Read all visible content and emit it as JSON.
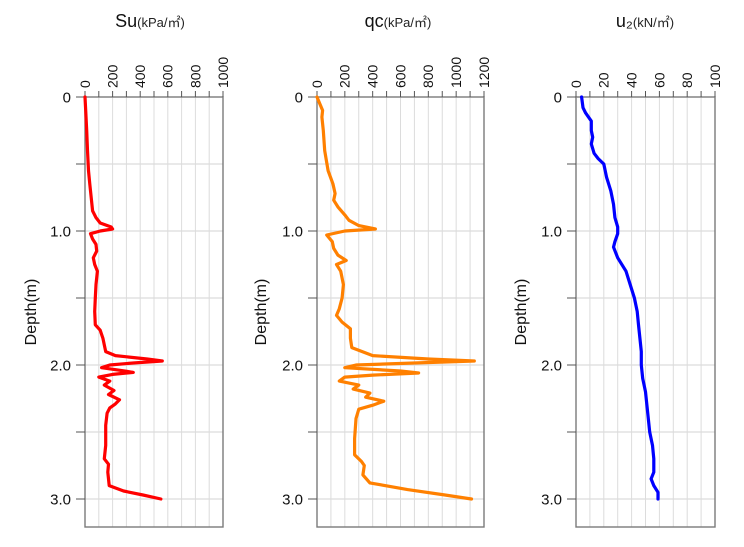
{
  "chart_data": [
    {
      "type": "line",
      "title": "Su",
      "unit": "(kPa/㎡)",
      "xlabel_ticks": [
        "0",
        "200",
        "400",
        "600",
        "800",
        "1000"
      ],
      "xlim": [
        0,
        1000
      ],
      "x_tick_step": 200,
      "x_grid_step": 100,
      "ylabel": "Depth(m)",
      "ylim": [
        0,
        3.21
      ],
      "y_ticks": [
        0,
        0.5,
        1.0,
        1.5,
        2.0,
        2.5,
        3.0
      ],
      "y_tick_labels": [
        "0",
        "",
        "1.0",
        "",
        "2.0",
        "",
        "3.0"
      ],
      "grid": true,
      "color": "#ff0000",
      "series": [
        {
          "name": "Su",
          "points": [
            [
              0.0,
              0
            ],
            [
              0.1,
              5
            ],
            [
              0.25,
              12
            ],
            [
              0.4,
              18
            ],
            [
              0.55,
              25
            ],
            [
              0.65,
              35
            ],
            [
              0.75,
              45
            ],
            [
              0.85,
              55
            ],
            [
              0.9,
              80
            ],
            [
              0.94,
              110
            ],
            [
              0.97,
              190
            ],
            [
              0.985,
              200
            ],
            [
              1.0,
              110
            ],
            [
              1.02,
              40
            ],
            [
              1.06,
              55
            ],
            [
              1.1,
              80
            ],
            [
              1.15,
              85
            ],
            [
              1.2,
              60
            ],
            [
              1.25,
              70
            ],
            [
              1.3,
              90
            ],
            [
              1.4,
              80
            ],
            [
              1.5,
              75
            ],
            [
              1.6,
              70
            ],
            [
              1.7,
              75
            ],
            [
              1.74,
              110
            ],
            [
              1.8,
              130
            ],
            [
              1.85,
              140
            ],
            [
              1.9,
              150
            ],
            [
              1.93,
              220
            ],
            [
              1.955,
              450
            ],
            [
              1.97,
              560
            ],
            [
              1.985,
              350
            ],
            [
              2.0,
              180
            ],
            [
              2.02,
              120
            ],
            [
              2.04,
              260
            ],
            [
              2.055,
              350
            ],
            [
              2.07,
              200
            ],
            [
              2.09,
              100
            ],
            [
              2.12,
              180
            ],
            [
              2.15,
              140
            ],
            [
              2.19,
              210
            ],
            [
              2.22,
              170
            ],
            [
              2.26,
              250
            ],
            [
              2.29,
              220
            ],
            [
              2.32,
              180
            ],
            [
              2.36,
              160
            ],
            [
              2.45,
              150
            ],
            [
              2.6,
              150
            ],
            [
              2.7,
              140
            ],
            [
              2.74,
              170
            ],
            [
              2.8,
              165
            ],
            [
              2.9,
              175
            ],
            [
              2.94,
              280
            ],
            [
              2.97,
              420
            ],
            [
              3.0,
              550
            ]
          ]
        }
      ]
    },
    {
      "type": "line",
      "title": "qc",
      "unit": "(kPa/㎡)",
      "xlabel_ticks": [
        "0",
        "200",
        "400",
        "600",
        "800",
        "1000",
        "1200"
      ],
      "xlim": [
        0,
        1200
      ],
      "x_tick_step": 200,
      "x_grid_step": 100,
      "ylabel": "Depth(m)",
      "ylim": [
        0,
        3.21
      ],
      "y_ticks": [
        0,
        0.5,
        1.0,
        1.5,
        2.0,
        2.5,
        3.0
      ],
      "y_tick_labels": [
        "0",
        "",
        "1.0",
        "",
        "2.0",
        "",
        "3.0"
      ],
      "grid": true,
      "color": "#ff8000",
      "series": [
        {
          "name": "qc",
          "points": [
            [
              0.0,
              0
            ],
            [
              0.05,
              20
            ],
            [
              0.1,
              40
            ],
            [
              0.15,
              35
            ],
            [
              0.25,
              45
            ],
            [
              0.4,
              55
            ],
            [
              0.55,
              80
            ],
            [
              0.65,
              115
            ],
            [
              0.72,
              130
            ],
            [
              0.77,
              120
            ],
            [
              0.82,
              150
            ],
            [
              0.88,
              200
            ],
            [
              0.92,
              230
            ],
            [
              0.96,
              300
            ],
            [
              0.985,
              420
            ],
            [
              1.0,
              200
            ],
            [
              1.03,
              70
            ],
            [
              1.08,
              110
            ],
            [
              1.13,
              120
            ],
            [
              1.18,
              150
            ],
            [
              1.22,
              210
            ],
            [
              1.25,
              140
            ],
            [
              1.3,
              170
            ],
            [
              1.4,
              190
            ],
            [
              1.5,
              180
            ],
            [
              1.58,
              160
            ],
            [
              1.63,
              140
            ],
            [
              1.68,
              180
            ],
            [
              1.73,
              240
            ],
            [
              1.8,
              240
            ],
            [
              1.87,
              250
            ],
            [
              1.93,
              400
            ],
            [
              1.955,
              800
            ],
            [
              1.97,
              1130
            ],
            [
              1.985,
              700
            ],
            [
              2.0,
              280
            ],
            [
              2.02,
              200
            ],
            [
              2.045,
              600
            ],
            [
              2.06,
              730
            ],
            [
              2.075,
              400
            ],
            [
              2.09,
              200
            ],
            [
              2.12,
              160
            ],
            [
              2.15,
              300
            ],
            [
              2.18,
              260
            ],
            [
              2.21,
              380
            ],
            [
              2.24,
              350
            ],
            [
              2.27,
              480
            ],
            [
              2.3,
              400
            ],
            [
              2.33,
              300
            ],
            [
              2.4,
              280
            ],
            [
              2.55,
              270
            ],
            [
              2.67,
              270
            ],
            [
              2.72,
              320
            ],
            [
              2.75,
              340
            ],
            [
              2.82,
              330
            ],
            [
              2.88,
              380
            ],
            [
              2.93,
              650
            ],
            [
              2.97,
              920
            ],
            [
              3.0,
              1110
            ]
          ]
        }
      ]
    },
    {
      "type": "line",
      "title": "u₂",
      "unit": "(kN/㎡)",
      "xlabel_ticks": [
        "0",
        "20",
        "40",
        "60",
        "80",
        "100"
      ],
      "xlim": [
        0,
        100
      ],
      "x_tick_step": 20,
      "x_grid_step": 10,
      "ylabel": "Depth(m)",
      "ylim": [
        0,
        3.21
      ],
      "y_ticks": [
        0,
        0.5,
        1.0,
        1.5,
        2.0,
        2.5,
        3.0
      ],
      "y_tick_labels": [
        "0",
        "",
        "1.0",
        "",
        "2.0",
        "",
        "3.0"
      ],
      "grid": true,
      "color": "#0000ff",
      "series": [
        {
          "name": "u2",
          "points": [
            [
              0.0,
              4
            ],
            [
              0.08,
              5
            ],
            [
              0.12,
              7
            ],
            [
              0.18,
              11
            ],
            [
              0.25,
              11
            ],
            [
              0.3,
              12
            ],
            [
              0.35,
              11
            ],
            [
              0.42,
              13
            ],
            [
              0.46,
              16
            ],
            [
              0.5,
              20
            ],
            [
              0.6,
              22
            ],
            [
              0.7,
              25
            ],
            [
              0.8,
              27
            ],
            [
              0.9,
              28
            ],
            [
              0.97,
              30
            ],
            [
              1.02,
              30
            ],
            [
              1.08,
              28
            ],
            [
              1.12,
              27
            ],
            [
              1.2,
              30
            ],
            [
              1.3,
              36
            ],
            [
              1.4,
              39
            ],
            [
              1.5,
              42
            ],
            [
              1.6,
              44
            ],
            [
              1.7,
              45
            ],
            [
              1.8,
              46
            ],
            [
              1.9,
              47
            ],
            [
              2.0,
              47
            ],
            [
              2.1,
              48
            ],
            [
              2.2,
              50
            ],
            [
              2.3,
              51
            ],
            [
              2.4,
              52
            ],
            [
              2.5,
              53
            ],
            [
              2.6,
              55
            ],
            [
              2.7,
              56
            ],
            [
              2.8,
              56
            ],
            [
              2.85,
              54
            ],
            [
              2.9,
              56
            ],
            [
              2.95,
              59
            ],
            [
              3.0,
              59
            ]
          ]
        }
      ]
    }
  ]
}
